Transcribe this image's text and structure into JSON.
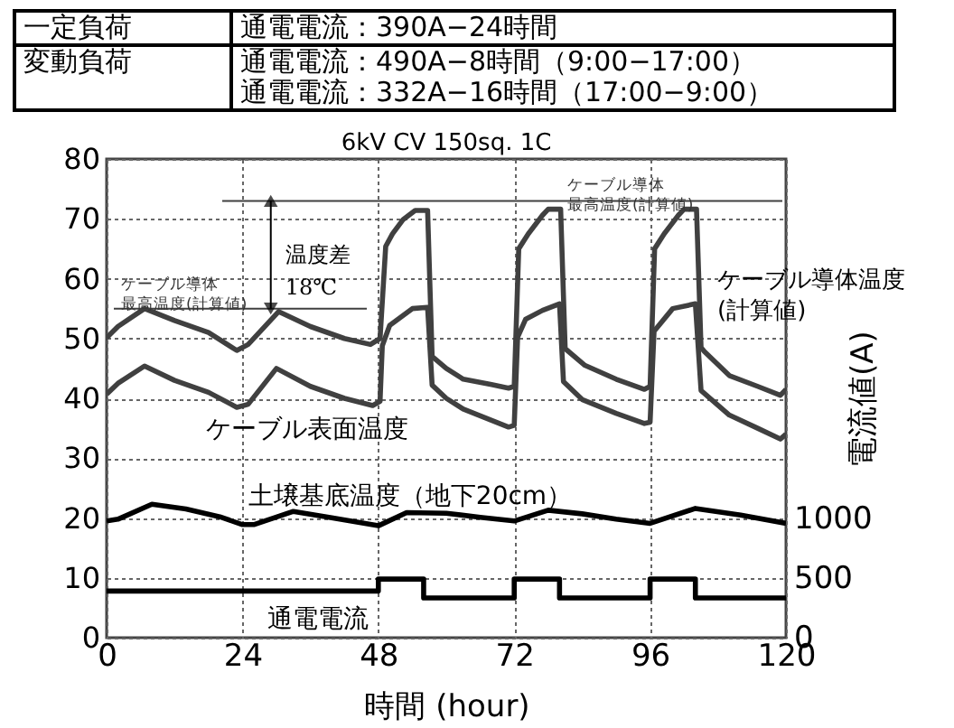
{
  "chart_data": {
    "type": "line",
    "title": "6kV CV 150sq. 1C",
    "xlabel": "時間 (hour)",
    "y2label": "電流値(A)",
    "xlim": [
      0,
      120
    ],
    "xticks": [
      0,
      24,
      48,
      72,
      96,
      120
    ],
    "ylim": [
      0,
      80
    ],
    "yticks": [
      0,
      10,
      20,
      30,
      40,
      50,
      60,
      70,
      80
    ],
    "y2lim": [
      0,
      4000
    ],
    "y2ticks": [
      0,
      500,
      1000
    ],
    "grid": true,
    "line_style": "solid",
    "series": [
      {
        "name": "ケーブル導体温度(計算値)",
        "color": "#404040",
        "x": [
          0,
          2,
          6.7,
          12,
          18,
          23,
          25,
          30.4,
          36,
          42,
          46.6,
          48.3,
          49.3,
          50.5,
          52.4,
          54.5,
          56.7,
          57.5,
          60,
          63,
          68,
          71,
          72,
          72.8,
          74.5,
          77,
          78,
          80.2,
          81,
          84.5,
          90,
          95,
          96,
          96.8,
          98.5,
          101,
          102,
          104.2,
          105,
          105.6,
          110,
          115,
          119,
          120
        ],
        "values": [
          50.1,
          52,
          55,
          53,
          51,
          48,
          49,
          54.5,
          52,
          50,
          49,
          50,
          65.4,
          67.5,
          69.9,
          71.4,
          71.4,
          47,
          45,
          43.2,
          42.3,
          41.7,
          42,
          65,
          67.5,
          70.6,
          71.6,
          71.6,
          48.3,
          45.5,
          43.2,
          41.5,
          42,
          65,
          67.5,
          70.6,
          71.6,
          71.6,
          48.5,
          47.8,
          43.8,
          42,
          40.5,
          41.5
        ]
      },
      {
        "name": "ケーブル表面温度",
        "color": "#404040",
        "x": [
          0,
          2,
          6.7,
          12,
          18,
          23,
          25,
          30,
          36,
          42,
          47,
          48.3,
          48.7,
          50,
          54,
          56.7,
          57.5,
          60,
          63,
          71,
          72,
          72.6,
          74,
          77,
          80,
          80.7,
          84,
          90,
          95,
          96,
          96.7,
          100,
          104,
          105,
          110,
          115,
          119,
          120
        ],
        "values": [
          40.7,
          42.5,
          45.4,
          43,
          41,
          38.5,
          39,
          45,
          42,
          40,
          38.8,
          39.5,
          48.8,
          52.2,
          55,
          55.2,
          42.2,
          40,
          38.2,
          35.2,
          35.5,
          50.2,
          53.2,
          54.7,
          55.8,
          42.8,
          39.8,
          37.5,
          35.8,
          36,
          51.2,
          55,
          55.8,
          41.3,
          37.2,
          35,
          33.2,
          34
        ]
      },
      {
        "name": "土壌基底温度（地下20cm）",
        "color": "#000000",
        "x": [
          0,
          2,
          8,
          14,
          20,
          24,
          26,
          33,
          40,
          48,
          53,
          60,
          66,
          72,
          78,
          84,
          90,
          96,
          104,
          112,
          120
        ],
        "values": [
          19.5,
          19.8,
          22.3,
          21.5,
          20.2,
          18.9,
          18.9,
          21.1,
          20,
          18.7,
          20.9,
          20.8,
          20.1,
          19.5,
          21.3,
          20.7,
          19.8,
          19.1,
          21.6,
          20.5,
          19.1
        ]
      },
      {
        "name": "通電電流",
        "type": "step",
        "axis": "y2",
        "color": "#000000",
        "x": [
          0,
          48,
          56,
          72,
          80,
          96,
          104,
          120
        ],
        "values": [
          390,
          490,
          332,
          490,
          332,
          490,
          332,
          332
        ]
      }
    ],
    "ref_lines": [
      {
        "axis": "y",
        "value": 55,
        "label": "ケーブル導体最高温度(計算値)",
        "color": "#404040"
      },
      {
        "axis": "y",
        "value": 73,
        "label": "ケーブル導体最高温度(計算値)",
        "color": "#404040"
      }
    ],
    "annotations": [
      "一定負荷",
      "通電電流：390A−24時間",
      "変動負荷",
      "通電電流：490A−8時間（9:00−17:00）",
      "通電電流：332A−16時間（17:00−9:00）",
      {
        "text": "温度差18℃",
        "x": 29,
        "y": 55
      }
    ]
  }
}
